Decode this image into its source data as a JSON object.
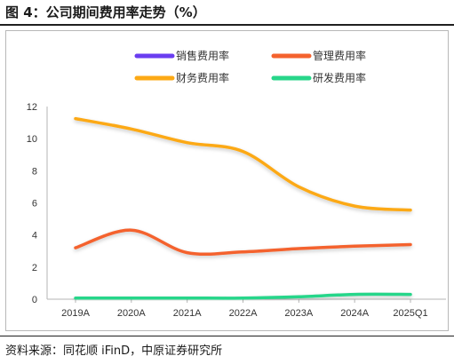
{
  "figure": {
    "title": "图 4：公司期间费用率走势（%）",
    "source": "资料来源：同花顺 iFinD，中原证券研究所"
  },
  "chart_data": {
    "type": "line",
    "title": "",
    "xlabel": "",
    "ylabel": "",
    "categories": [
      "2019A",
      "2020A",
      "2021A",
      "2022A",
      "2023A",
      "2024A",
      "2025Q1"
    ],
    "ylim": [
      0,
      12
    ],
    "yticks": [
      "0",
      "2",
      "4",
      "6",
      "8",
      "10",
      "12"
    ],
    "grid": false,
    "legend_position": "top",
    "series": [
      {
        "name": "销售费用率",
        "color": "#6a3df0",
        "values": [
          0.05,
          0.05,
          0.05,
          0.05,
          0.05,
          0.05,
          0.05
        ]
      },
      {
        "name": "管理费用率",
        "color": "#f4622e",
        "values": [
          3.2,
          4.3,
          2.9,
          2.95,
          3.15,
          3.3,
          3.4
        ]
      },
      {
        "name": "财务费用率",
        "color": "#fca915",
        "values": [
          11.25,
          10.6,
          9.75,
          9.2,
          7.0,
          5.8,
          5.55
        ]
      },
      {
        "name": "研发费用率",
        "color": "#28d68a",
        "values": [
          0.07,
          0.07,
          0.07,
          0.07,
          0.15,
          0.3,
          0.3
        ]
      }
    ]
  }
}
